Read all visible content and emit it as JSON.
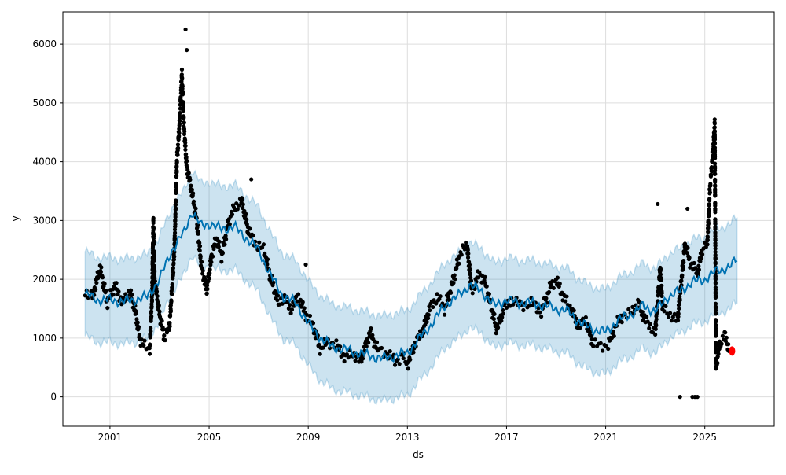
{
  "chart_data": {
    "type": "line",
    "title": "",
    "xlabel": "ds",
    "ylabel": "y",
    "xlim": [
      1999.1,
      2027.8
    ],
    "ylim": [
      -500,
      6550
    ],
    "grid": true,
    "x_ticks": [
      {
        "value": 2001,
        "label": "2001"
      },
      {
        "value": 2005,
        "label": "2005"
      },
      {
        "value": 2009,
        "label": "2009"
      },
      {
        "value": 2013,
        "label": "2013"
      },
      {
        "value": 2017,
        "label": "2017"
      },
      {
        "value": 2021,
        "label": "2021"
      },
      {
        "value": 2025,
        "label": "2025"
      }
    ],
    "y_ticks": [
      {
        "value": 0,
        "label": "0"
      },
      {
        "value": 1000,
        "label": "1000"
      },
      {
        "value": 2000,
        "label": "2000"
      },
      {
        "value": 3000,
        "label": "3000"
      },
      {
        "value": 4000,
        "label": "4000"
      },
      {
        "value": 5000,
        "label": "5000"
      },
      {
        "value": 6000,
        "label": "6000"
      }
    ],
    "colors": {
      "forecast": "#0072B2",
      "band": "#0072B2",
      "observed": "#000000",
      "highlight": "#ff0000"
    },
    "band_halfwidth": 720,
    "forecast_yhat": [
      [
        2000.0,
        1750
      ],
      [
        2000.5,
        1650
      ],
      [
        2001,
        1650
      ],
      [
        2001.5,
        1620
      ],
      [
        2002,
        1650
      ],
      [
        2002.5,
        1700
      ],
      [
        2003,
        2000
      ],
      [
        2003.5,
        2500
      ],
      [
        2004,
        2800
      ],
      [
        2004.3,
        3150
      ],
      [
        2004.7,
        2900
      ],
      [
        2005,
        2950
      ],
      [
        2005.5,
        2850
      ],
      [
        2006,
        2900
      ],
      [
        2006.5,
        2700
      ],
      [
        2007,
        2500
      ],
      [
        2007.5,
        2050
      ],
      [
        2008,
        1700
      ],
      [
        2008.5,
        1600
      ],
      [
        2009,
        1250
      ],
      [
        2009.5,
        1000
      ],
      [
        2010,
        850
      ],
      [
        2011,
        750
      ],
      [
        2011.5,
        700
      ],
      [
        2012,
        650
      ],
      [
        2012.5,
        700
      ],
      [
        2013,
        750
      ],
      [
        2013.5,
        1000
      ],
      [
        2014,
        1250
      ],
      [
        2014.5,
        1550
      ],
      [
        2015,
        1700
      ],
      [
        2015.5,
        1900
      ],
      [
        2016,
        1800
      ],
      [
        2016.5,
        1550
      ],
      [
        2017,
        1650
      ],
      [
        2017.5,
        1600
      ],
      [
        2018,
        1600
      ],
      [
        2018.5,
        1550
      ],
      [
        2019,
        1500
      ],
      [
        2019.5,
        1450
      ],
      [
        2020,
        1250
      ],
      [
        2020.5,
        1150
      ],
      [
        2021,
        1100
      ],
      [
        2021.5,
        1300
      ],
      [
        2022,
        1400
      ],
      [
        2022.5,
        1550
      ],
      [
        2023,
        1450
      ],
      [
        2023.5,
        1700
      ],
      [
        2024,
        1800
      ],
      [
        2024.5,
        1950
      ],
      [
        2025,
        2000
      ],
      [
        2025.5,
        2150
      ],
      [
        2026,
        2200
      ],
      [
        2026.3,
        2350
      ]
    ],
    "observed_path": [
      [
        2000,
        1800
      ],
      [
        2000.3,
        1700
      ],
      [
        2000.6,
        2200
      ],
      [
        2000.9,
        1600
      ],
      [
        2001.2,
        1900
      ],
      [
        2001.5,
        1600
      ],
      [
        2001.8,
        1800
      ],
      [
        2002,
        1500
      ],
      [
        2002.2,
        1000
      ],
      [
        2002.4,
        850
      ],
      [
        2002.6,
        800
      ],
      [
        2002.7,
        1700
      ],
      [
        2002.75,
        3000
      ],
      [
        2002.8,
        2000
      ],
      [
        2003,
        1400
      ],
      [
        2003.2,
        1000
      ],
      [
        2003.4,
        1200
      ],
      [
        2003.5,
        1800
      ],
      [
        2003.6,
        2500
      ],
      [
        2003.7,
        4000
      ],
      [
        2003.8,
        4600
      ],
      [
        2003.9,
        5500
      ],
      [
        2004.0,
        4500
      ],
      [
        2004.1,
        3900
      ],
      [
        2004.3,
        3500
      ],
      [
        2004.5,
        3000
      ],
      [
        2004.7,
        2200
      ],
      [
        2004.9,
        1800
      ],
      [
        2005.1,
        2400
      ],
      [
        2005.3,
        2700
      ],
      [
        2005.5,
        2400
      ],
      [
        2005.8,
        3000
      ],
      [
        2006,
        3200
      ],
      [
        2006.3,
        3350
      ],
      [
        2006.6,
        2800
      ],
      [
        2006.9,
        2600
      ],
      [
        2007.2,
        2500
      ],
      [
        2007.5,
        2000
      ],
      [
        2007.8,
        1600
      ],
      [
        2008,
        1700
      ],
      [
        2008.3,
        1500
      ],
      [
        2008.6,
        1700
      ],
      [
        2008.9,
        1400
      ],
      [
        2009.2,
        1200
      ],
      [
        2009.5,
        800
      ],
      [
        2009.8,
        950
      ],
      [
        2010.2,
        850
      ],
      [
        2010.5,
        650
      ],
      [
        2010.8,
        750
      ],
      [
        2011.1,
        600
      ],
      [
        2011.5,
        1100
      ],
      [
        2011.8,
        800
      ],
      [
        2012.2,
        750
      ],
      [
        2012.5,
        600
      ],
      [
        2012.8,
        700
      ],
      [
        2013,
        550
      ],
      [
        2013.3,
        900
      ],
      [
        2013.6,
        1100
      ],
      [
        2013.9,
        1500
      ],
      [
        2014.2,
        1700
      ],
      [
        2014.5,
        1500
      ],
      [
        2014.8,
        1900
      ],
      [
        2015.1,
        2400
      ],
      [
        2015.4,
        2600
      ],
      [
        2015.6,
        1800
      ],
      [
        2015.9,
        2100
      ],
      [
        2016.1,
        2000
      ],
      [
        2016.4,
        1500
      ],
      [
        2016.6,
        1150
      ],
      [
        2016.9,
        1500
      ],
      [
        2017.2,
        1650
      ],
      [
        2017.6,
        1550
      ],
      [
        2018,
        1600
      ],
      [
        2018.4,
        1450
      ],
      [
        2018.8,
        1900
      ],
      [
        2019,
        2000
      ],
      [
        2019.3,
        1700
      ],
      [
        2019.6,
        1500
      ],
      [
        2019.9,
        1200
      ],
      [
        2020.2,
        1300
      ],
      [
        2020.5,
        900
      ],
      [
        2020.8,
        850
      ],
      [
        2021.1,
        900
      ],
      [
        2021.4,
        1200
      ],
      [
        2021.7,
        1400
      ],
      [
        2022,
        1400
      ],
      [
        2022.3,
        1600
      ],
      [
        2022.6,
        1300
      ],
      [
        2023,
        1100
      ],
      [
        2023.2,
        2200
      ],
      [
        2023.3,
        1500
      ],
      [
        2023.6,
        1400
      ],
      [
        2023.9,
        1300
      ],
      [
        2024.2,
        2600
      ],
      [
        2024.4,
        2300
      ],
      [
        2024.7,
        2100
      ],
      [
        2024.9,
        2500
      ],
      [
        2025.1,
        2600
      ],
      [
        2025.2,
        3500
      ],
      [
        2025.35,
        4300
      ],
      [
        2025.4,
        4650
      ],
      [
        2025.45,
        500
      ],
      [
        2025.6,
        900
      ],
      [
        2025.8,
        1050
      ],
      [
        2026,
        800
      ]
    ],
    "observed_outliers": [
      [
        2004.05,
        6250
      ],
      [
        2004.1,
        5900
      ],
      [
        2006.7,
        3700
      ],
      [
        2008.9,
        2250
      ],
      [
        2023.1,
        3280
      ],
      [
        2024.3,
        3200
      ],
      [
        2024.0,
        0
      ],
      [
        2024.5,
        0
      ],
      [
        2024.6,
        0
      ],
      [
        2024.7,
        0
      ]
    ],
    "highlight_points": [
      [
        2026.1,
        780
      ]
    ]
  }
}
